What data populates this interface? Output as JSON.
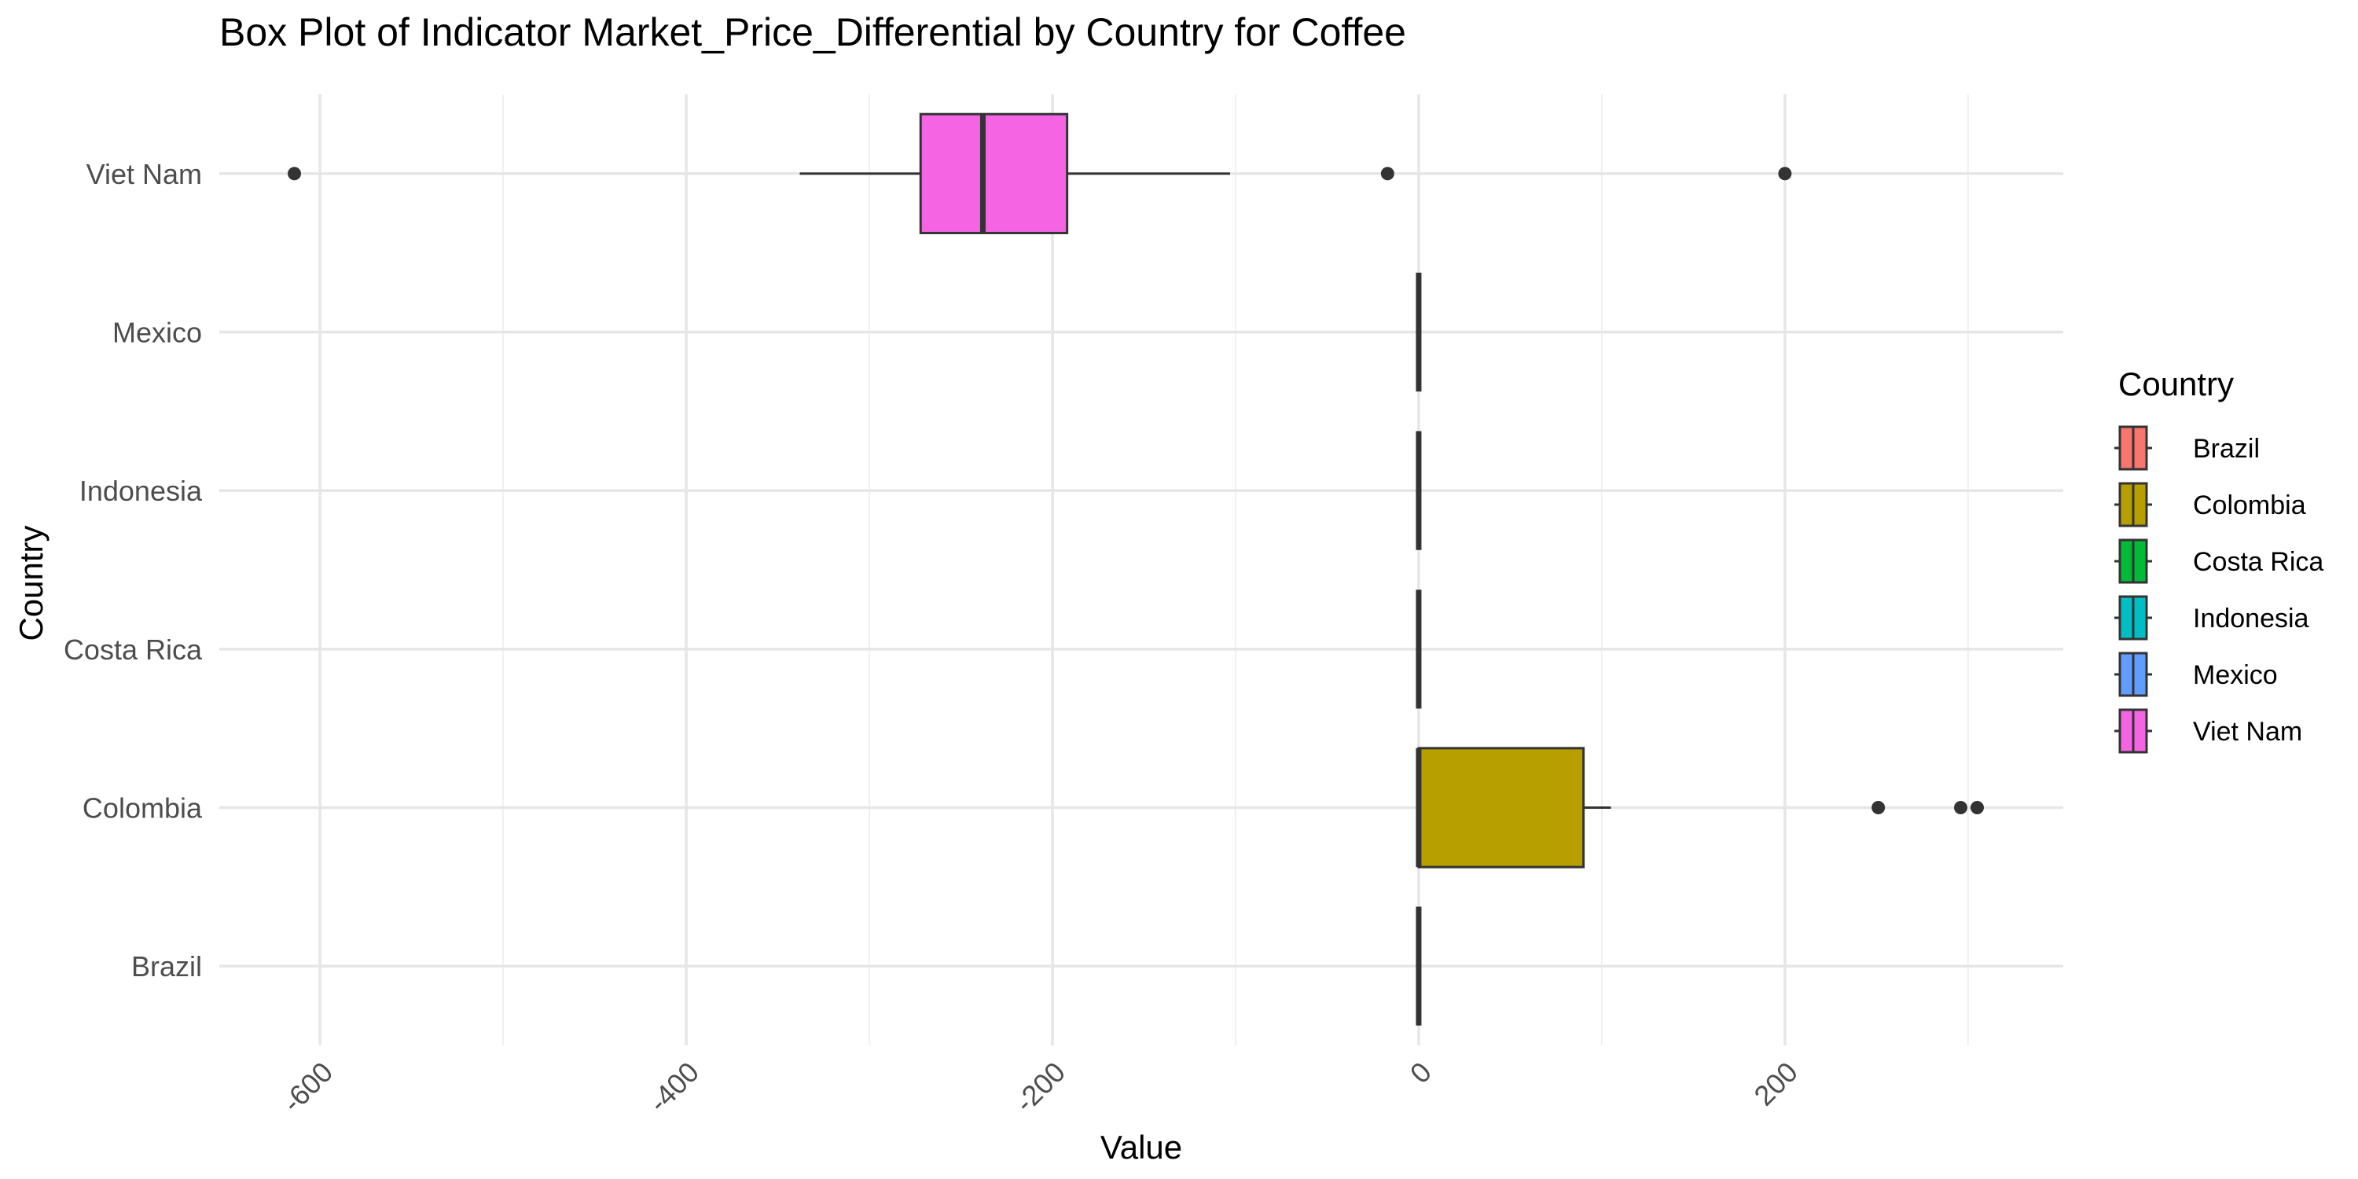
{
  "chart_data": {
    "type": "boxplot",
    "orientation": "horizontal",
    "title": "Box Plot of Indicator Market_Price_Differential by Country for Coffee",
    "xlabel": "Value",
    "ylabel": "Country",
    "xlim": [
      -655,
      352
    ],
    "x_ticks": [
      -600,
      -400,
      -200,
      0,
      200
    ],
    "x_tick_labels": [
      "-600",
      "-400",
      "-200",
      "0",
      "200"
    ],
    "x_minor_ticks": [
      -500,
      -300,
      -100,
      100,
      300
    ],
    "categories": [
      "Brazil",
      "Colombia",
      "Costa Rica",
      "Indonesia",
      "Mexico",
      "Viet Nam"
    ],
    "grid": true,
    "legend": {
      "title": "Country",
      "position": "right",
      "items": [
        "Brazil",
        "Colombia",
        "Costa Rica",
        "Indonesia",
        "Mexico",
        "Viet Nam"
      ]
    },
    "series": [
      {
        "name": "Brazil",
        "color": "#F8766D",
        "min": 0,
        "q1": 0,
        "median": 0,
        "q3": 0,
        "max": 0,
        "outliers": []
      },
      {
        "name": "Colombia",
        "color": "#B79F00",
        "min": 0,
        "q1": 0,
        "median": 0,
        "q3": 90,
        "max": 105,
        "outliers": [
          251,
          296,
          305
        ]
      },
      {
        "name": "Costa Rica",
        "color": "#00BA38",
        "min": 0,
        "q1": 0,
        "median": 0,
        "q3": 0,
        "max": 0,
        "outliers": []
      },
      {
        "name": "Indonesia",
        "color": "#00BFC4",
        "min": 0,
        "q1": 0,
        "median": 0,
        "q3": 0,
        "max": 0,
        "outliers": []
      },
      {
        "name": "Mexico",
        "color": "#619CFF",
        "min": 0,
        "q1": 0,
        "median": 0,
        "q3": 0,
        "max": 0,
        "outliers": []
      },
      {
        "name": "Viet Nam",
        "color": "#F564E3",
        "min": -338,
        "q1": -272,
        "median": -238,
        "q3": -192,
        "max": -103,
        "outliers": [
          -614,
          -17,
          200
        ]
      }
    ]
  }
}
